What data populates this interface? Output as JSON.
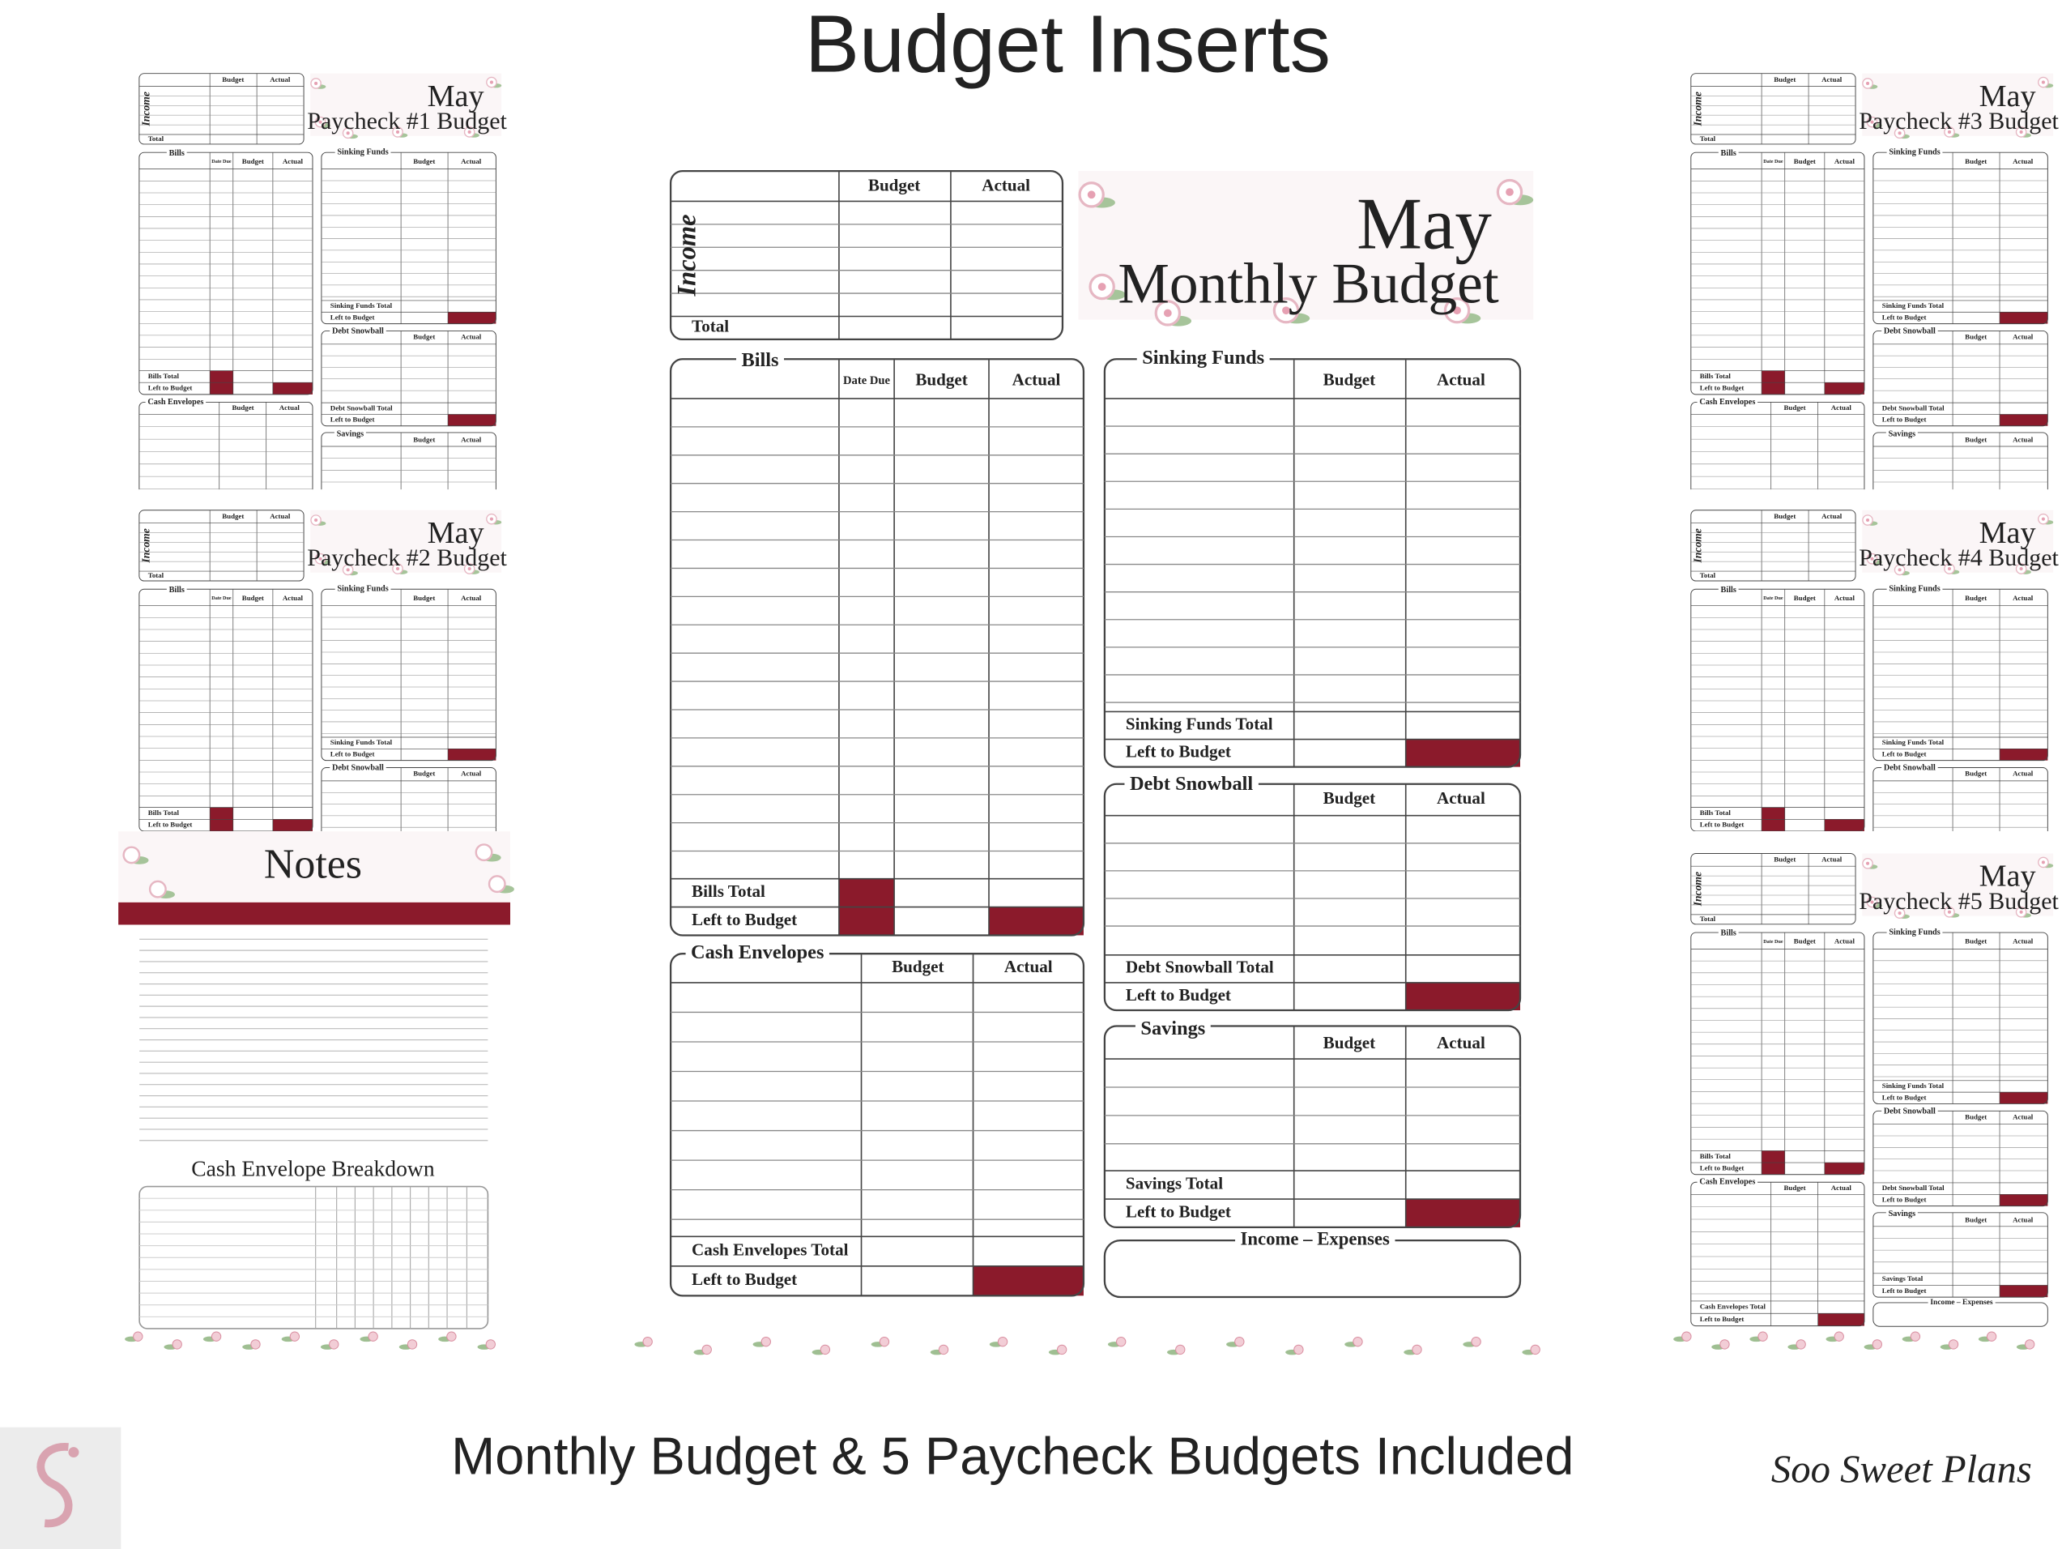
{
  "header": {
    "title": "Budget Inserts"
  },
  "monthly": {
    "month": "May",
    "title": "Monthly Budget",
    "columns": {
      "budget": "Budget",
      "actual": "Actual",
      "date_due": "Date Due"
    },
    "income": {
      "label": "Income",
      "total": "Total"
    },
    "bills": {
      "title": "Bills",
      "total": "Bills Total",
      "left": "Left to Budget"
    },
    "cash_envelopes": {
      "title": "Cash Envelopes",
      "total": "Cash Envelopes Total",
      "left": "Left to Budget"
    },
    "sinking_funds": {
      "title": "Sinking Funds",
      "total": "Sinking Funds Total",
      "left": "Left to Budget"
    },
    "debt_snowball": {
      "title": "Debt Snowball",
      "total": "Debt Snowball Total",
      "left": "Left to Budget"
    },
    "savings": {
      "title": "Savings",
      "total": "Savings Total",
      "left": "Left to Budget"
    },
    "income_expenses": "Income – Expenses"
  },
  "paychecks": [
    {
      "month": "May",
      "title": "Paycheck #1 Budget"
    },
    {
      "month": "May",
      "title": "Paycheck #2 Budget"
    },
    {
      "month": "May",
      "title": "Paycheck #3 Budget"
    },
    {
      "month": "May",
      "title": "Paycheck #4 Budget"
    },
    {
      "month": "May",
      "title": "Paycheck #5 Budget"
    }
  ],
  "notes": {
    "title": "Notes",
    "breakdown": "Cash Envelope Breakdown"
  },
  "footer": {
    "caption": "Monthly Budget & 5 Paycheck Budgets Included",
    "brand": "Soo Sweet Plans"
  }
}
